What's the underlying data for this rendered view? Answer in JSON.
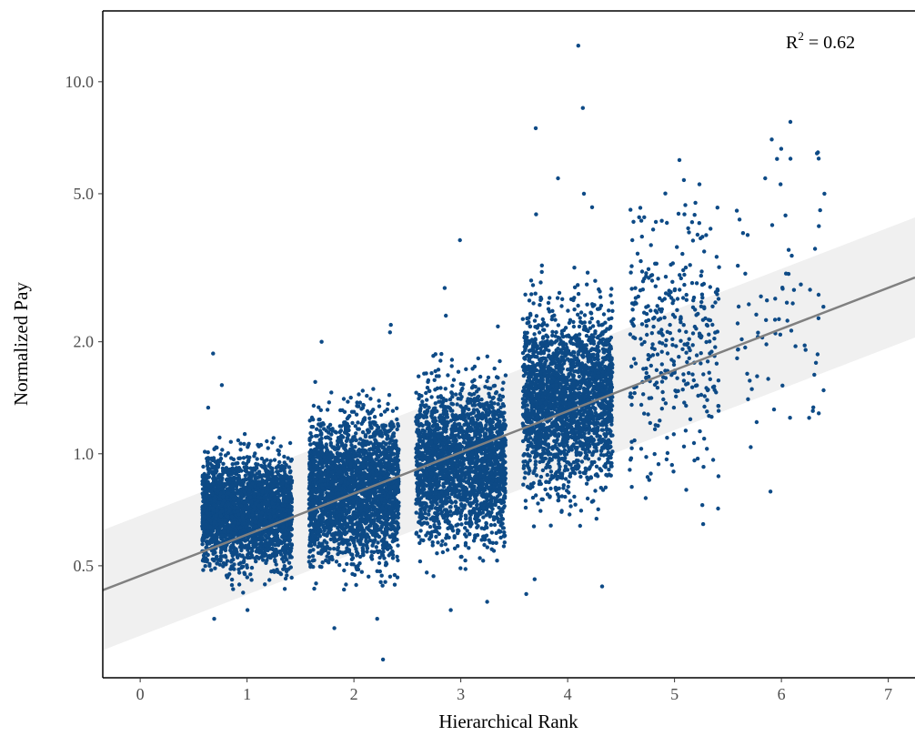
{
  "chart_data": {
    "type": "scatter",
    "title": "",
    "xlabel": "Hierarchical Rank",
    "ylabel": "Normalized Pay",
    "xlim": [
      -0.35,
      7.25
    ],
    "ylim": [
      0.25,
      15.5
    ],
    "y_scale": "log",
    "x_ticks": [
      0,
      1,
      2,
      3,
      4,
      5,
      6,
      7
    ],
    "x_tick_labels": [
      "0",
      "1",
      "2",
      "3",
      "4",
      "5",
      "6",
      "7"
    ],
    "y_ticks": [
      0.5,
      1.0,
      2.0,
      5.0,
      10.0
    ],
    "y_tick_labels": [
      "0.5",
      "1.0",
      "2.0",
      "5.0",
      "10.0"
    ],
    "grid": false,
    "point_color": "#0d4a86",
    "fit_line_color": "#808080",
    "band_color": "#f0f0f0",
    "annotation": {
      "base": "R",
      "sup": "2",
      "text": " = 0.62"
    },
    "fit": {
      "intercept": 0.47,
      "per_rank_factor": 1.29,
      "band_factor": 1.45
    },
    "groups": [
      {
        "rank": 1,
        "median": 0.7,
        "spread": 0.16,
        "jitter": 0.42,
        "outliers": [
          1.53,
          1.86,
          1.33,
          0.36,
          0.38
        ]
      },
      {
        "rank": 2,
        "median": 0.8,
        "spread": 0.21,
        "jitter": 0.42,
        "outliers": [
          2.22,
          2.12,
          2.0,
          0.28,
          0.36,
          0.34
        ]
      },
      {
        "rank": 3,
        "median": 0.95,
        "spread": 0.23,
        "jitter": 0.42,
        "outliers": [
          3.75,
          2.79,
          2.2,
          2.35,
          0.38,
          0.4
        ]
      },
      {
        "rank": 4,
        "median": 1.4,
        "spread": 0.26,
        "jitter": 0.42,
        "outliers": [
          12.5,
          8.5,
          7.5,
          5.5,
          5.0,
          4.6,
          4.4,
          0.42,
          0.46,
          0.44
        ]
      },
      {
        "rank": 5,
        "median": 2.0,
        "spread": 0.4,
        "jitter": 0.42,
        "outliers": [
          5.3,
          4.4,
          4.2,
          0.8,
          0.76
        ]
      },
      {
        "rank": 6,
        "median": 2.4,
        "spread": 0.45,
        "jitter": 0.42,
        "outliers": [
          7.8,
          6.6,
          6.2,
          5.5,
          5.3,
          5.0,
          1.25
        ]
      }
    ]
  }
}
